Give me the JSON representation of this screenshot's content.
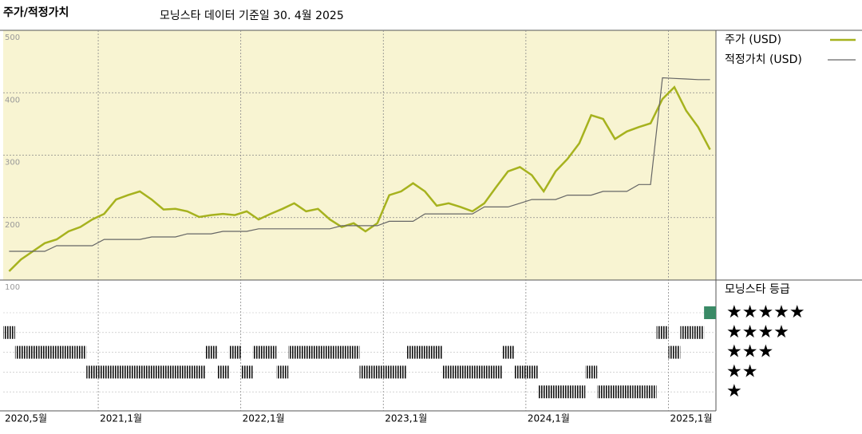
{
  "chart_data": {
    "type": "line",
    "title": "주가/적정가치",
    "subtitle": "모닝스타 데이터 기준일 30. 4월 2025",
    "x": [
      "2020-05",
      "2020-06",
      "2020-07",
      "2020-08",
      "2020-09",
      "2020-10",
      "2020-11",
      "2020-12",
      "2021-01",
      "2021-02",
      "2021-03",
      "2021-04",
      "2021-05",
      "2021-06",
      "2021-07",
      "2021-08",
      "2021-09",
      "2021-10",
      "2021-11",
      "2021-12",
      "2022-01",
      "2022-02",
      "2022-03",
      "2022-04",
      "2022-05",
      "2022-06",
      "2022-07",
      "2022-08",
      "2022-09",
      "2022-10",
      "2022-11",
      "2022-12",
      "2023-01",
      "2023-02",
      "2023-03",
      "2023-04",
      "2023-05",
      "2023-06",
      "2023-07",
      "2023-08",
      "2023-09",
      "2023-10",
      "2023-11",
      "2023-12",
      "2024-01",
      "2024-02",
      "2024-03",
      "2024-04",
      "2024-05",
      "2024-06",
      "2024-07",
      "2024-08",
      "2024-09",
      "2024-10",
      "2024-11",
      "2024-12",
      "2025-01",
      "2025-02",
      "2025-03",
      "2025-04"
    ],
    "series": [
      {
        "name": "주가 (USD)",
        "color": "#a6b21e",
        "values": [
          114,
          133,
          146,
          159,
          165,
          178,
          185,
          197,
          206,
          229,
          236,
          242,
          229,
          213,
          214,
          210,
          201,
          204,
          206,
          204,
          210,
          197,
          206,
          214,
          223,
          210,
          214,
          197,
          185,
          191,
          178,
          191,
          236,
          242,
          255,
          242,
          219,
          223,
          217,
          210,
          223,
          249,
          274,
          281,
          268,
          242,
          274,
          294,
          319,
          364,
          358,
          326,
          338,
          345,
          351,
          390,
          409,
          371,
          345,
          309
        ]
      },
      {
        "name": "적정가치 (USD)",
        "color": "#666666",
        "values": [
          146,
          146,
          146,
          146,
          155,
          155,
          155,
          155,
          165,
          165,
          165,
          165,
          169,
          169,
          169,
          174,
          174,
          174,
          178,
          178,
          178,
          182,
          182,
          182,
          182,
          182,
          182,
          182,
          187,
          187,
          187,
          187,
          194,
          194,
          194,
          206,
          206,
          206,
          206,
          206,
          217,
          217,
          217,
          223,
          229,
          229,
          229,
          236,
          236,
          236,
          242,
          242,
          242,
          253,
          253,
          424,
          423,
          422,
          421,
          421
        ]
      }
    ],
    "ylim": [
      100,
      500
    ],
    "yticks": [
      100,
      200,
      300,
      400,
      500
    ],
    "xticks": [
      {
        "value": "2020-05",
        "label": "2020,5월"
      },
      {
        "value": "2021-01",
        "label": "2021,1월"
      },
      {
        "value": "2022-01",
        "label": "2022,1월"
      },
      {
        "value": "2023-01",
        "label": "2023,1월"
      },
      {
        "value": "2024-01",
        "label": "2024,1월"
      },
      {
        "value": "2025-01",
        "label": "2025,1월"
      }
    ],
    "grid": true,
    "rating": {
      "name": "모닝스타 등급",
      "levels": [
        {
          "value": 5,
          "label": "★★★★★",
          "color": "#3a8a66"
        },
        {
          "value": 4,
          "label": "★★★★",
          "color": "#111111"
        },
        {
          "value": 3,
          "label": "★★★",
          "color": "#111111"
        },
        {
          "value": 2,
          "label": "★★",
          "color": "#111111"
        },
        {
          "value": 1,
          "label": "★",
          "color": "#111111"
        }
      ],
      "values": [
        4,
        3,
        3,
        3,
        3,
        3,
        3,
        2,
        2,
        2,
        2,
        2,
        2,
        2,
        2,
        2,
        2,
        3,
        2,
        3,
        2,
        3,
        3,
        2,
        3,
        3,
        3,
        3,
        3,
        3,
        2,
        2,
        2,
        2,
        3,
        3,
        3,
        2,
        2,
        2,
        2,
        2,
        3,
        2,
        2,
        1,
        1,
        1,
        1,
        2,
        1,
        1,
        1,
        1,
        1,
        4,
        3,
        4,
        4,
        5
      ]
    }
  }
}
